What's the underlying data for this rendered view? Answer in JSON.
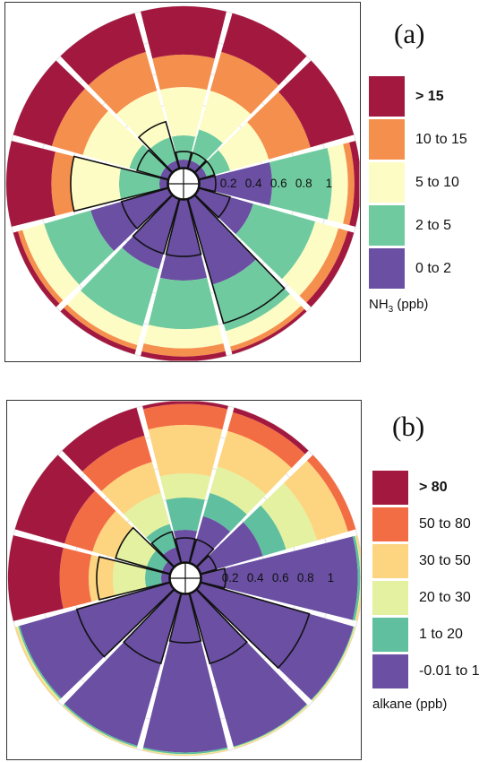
{
  "chart_data": [
    {
      "type": "polar-rose",
      "panel_label": "(a)",
      "radial_ticks": [
        "0.2",
        "0.4",
        "0.6",
        "0.8",
        "1"
      ],
      "radial_range": [
        0,
        1
      ],
      "legend_title": "NH",
      "legend_title_sub": "3",
      "legend_title_unit": " (ppb)",
      "legend": [
        {
          "label": "> 15",
          "color": "#a3183f"
        },
        {
          "label": "10 to 15",
          "color": "#f58f4d"
        },
        {
          "label": "5 to 10",
          "color": "#fdfcc4"
        },
        {
          "label": "2 to 5",
          "color": "#6fcb9f"
        },
        {
          "label": "0 to 2",
          "color": "#6a4fa3"
        }
      ],
      "sectors": [
        {
          "dir": 0,
          "cum": [
            0.05,
            0.2,
            0.5,
            0.7,
            1.0
          ],
          "freq": 0.1
        },
        {
          "dir": 30,
          "cum": [
            0.05,
            0.25,
            0.5,
            0.75,
            1.0
          ],
          "freq": 0.1
        },
        {
          "dir": 60,
          "cum": [
            0.05,
            0.2,
            0.45,
            0.72,
            1.0
          ],
          "freq": 0.1
        },
        {
          "dir": 90,
          "cum": [
            0.45,
            0.82,
            0.92,
            0.96,
            1.0
          ],
          "freq": 0.1
        },
        {
          "dir": 120,
          "cum": [
            0.35,
            0.75,
            0.9,
            0.96,
            1.0
          ],
          "freq": 0.2
        },
        {
          "dir": 150,
          "cum": [
            0.55,
            0.85,
            0.95,
            0.98,
            1.0
          ],
          "freq": 0.8
        },
        {
          "dir": 180,
          "cum": [
            0.5,
            0.8,
            0.92,
            0.97,
            1.0
          ],
          "freq": 0.35
        },
        {
          "dir": 210,
          "cum": [
            0.45,
            0.82,
            0.94,
            0.97,
            1.0
          ],
          "freq": 0.35
        },
        {
          "dir": 240,
          "cum": [
            0.5,
            0.8,
            0.94,
            0.97,
            1.0
          ],
          "freq": 0.3
        },
        {
          "dir": 270,
          "cum": [
            0.05,
            0.3,
            0.6,
            0.72,
            1.0
          ],
          "freq": 0.6
        },
        {
          "dir": 300,
          "cum": [
            0.05,
            0.25,
            0.55,
            0.75,
            1.0
          ],
          "freq": 0.2
        },
        {
          "dir": 330,
          "cum": [
            0.05,
            0.2,
            0.5,
            0.75,
            1.0
          ],
          "freq": 0.3
        }
      ]
    },
    {
      "type": "polar-rose",
      "panel_label": "(b)",
      "radial_ticks": [
        "0.2",
        "0.4",
        "0.6",
        "0.8",
        "1"
      ],
      "radial_range": [
        0,
        1
      ],
      "legend_title": "alkane (ppb)",
      "legend": [
        {
          "label": "> 80",
          "color": "#a3183f"
        },
        {
          "label": "50 to 80",
          "color": "#f26d43"
        },
        {
          "label": "30 to 50",
          "color": "#fdd480"
        },
        {
          "label": "20 to 30",
          "color": "#e3f1a0"
        },
        {
          "label": "1 to 20",
          "color": "#5fbf9e"
        },
        {
          "label": "-0.01 to 1",
          "color": "#6a4fa3"
        }
      ],
      "sectors": [
        {
          "dir": 0,
          "cum": [
            0.2,
            0.4,
            0.55,
            0.85,
            0.98,
            1.0
          ],
          "freq": 0.15
        },
        {
          "dir": 30,
          "cum": [
            0.3,
            0.45,
            0.62,
            0.85,
            0.97,
            1.0
          ],
          "freq": 0.15
        },
        {
          "dir": 60,
          "cum": [
            0.4,
            0.55,
            0.75,
            0.95,
            1.0,
            1.0
          ],
          "freq": 0.1
        },
        {
          "dir": 90,
          "cum": [
            0.97,
            0.985,
            0.99,
            1.0,
            1.0,
            1.0
          ],
          "freq": 0.15
        },
        {
          "dir": 120,
          "cum": [
            0.985,
            0.99,
            0.995,
            1.0,
            1.0,
            1.0
          ],
          "freq": 0.7
        },
        {
          "dir": 150,
          "cum": [
            0.985,
            0.99,
            0.995,
            1.0,
            1.0,
            1.0
          ],
          "freq": 0.45
        },
        {
          "dir": 180,
          "cum": [
            0.98,
            0.99,
            0.995,
            1.0,
            1.0,
            1.0
          ],
          "freq": 0.3
        },
        {
          "dir": 210,
          "cum": [
            0.98,
            0.99,
            0.995,
            1.0,
            1.0,
            1.0
          ],
          "freq": 0.45
        },
        {
          "dir": 240,
          "cum": [
            0.97,
            0.98,
            0.99,
            1.0,
            1.0,
            1.0
          ],
          "freq": 0.6
        },
        {
          "dir": 270,
          "cum": [
            0.05,
            0.15,
            0.35,
            0.5,
            0.68,
            1.0
          ],
          "freq": 0.45
        },
        {
          "dir": 300,
          "cum": [
            0.05,
            0.15,
            0.35,
            0.5,
            0.68,
            1.0
          ],
          "freq": 0.35
        },
        {
          "dir": 330,
          "cum": [
            0.1,
            0.25,
            0.45,
            0.65,
            0.82,
            1.0
          ],
          "freq": 0.2
        }
      ]
    }
  ]
}
